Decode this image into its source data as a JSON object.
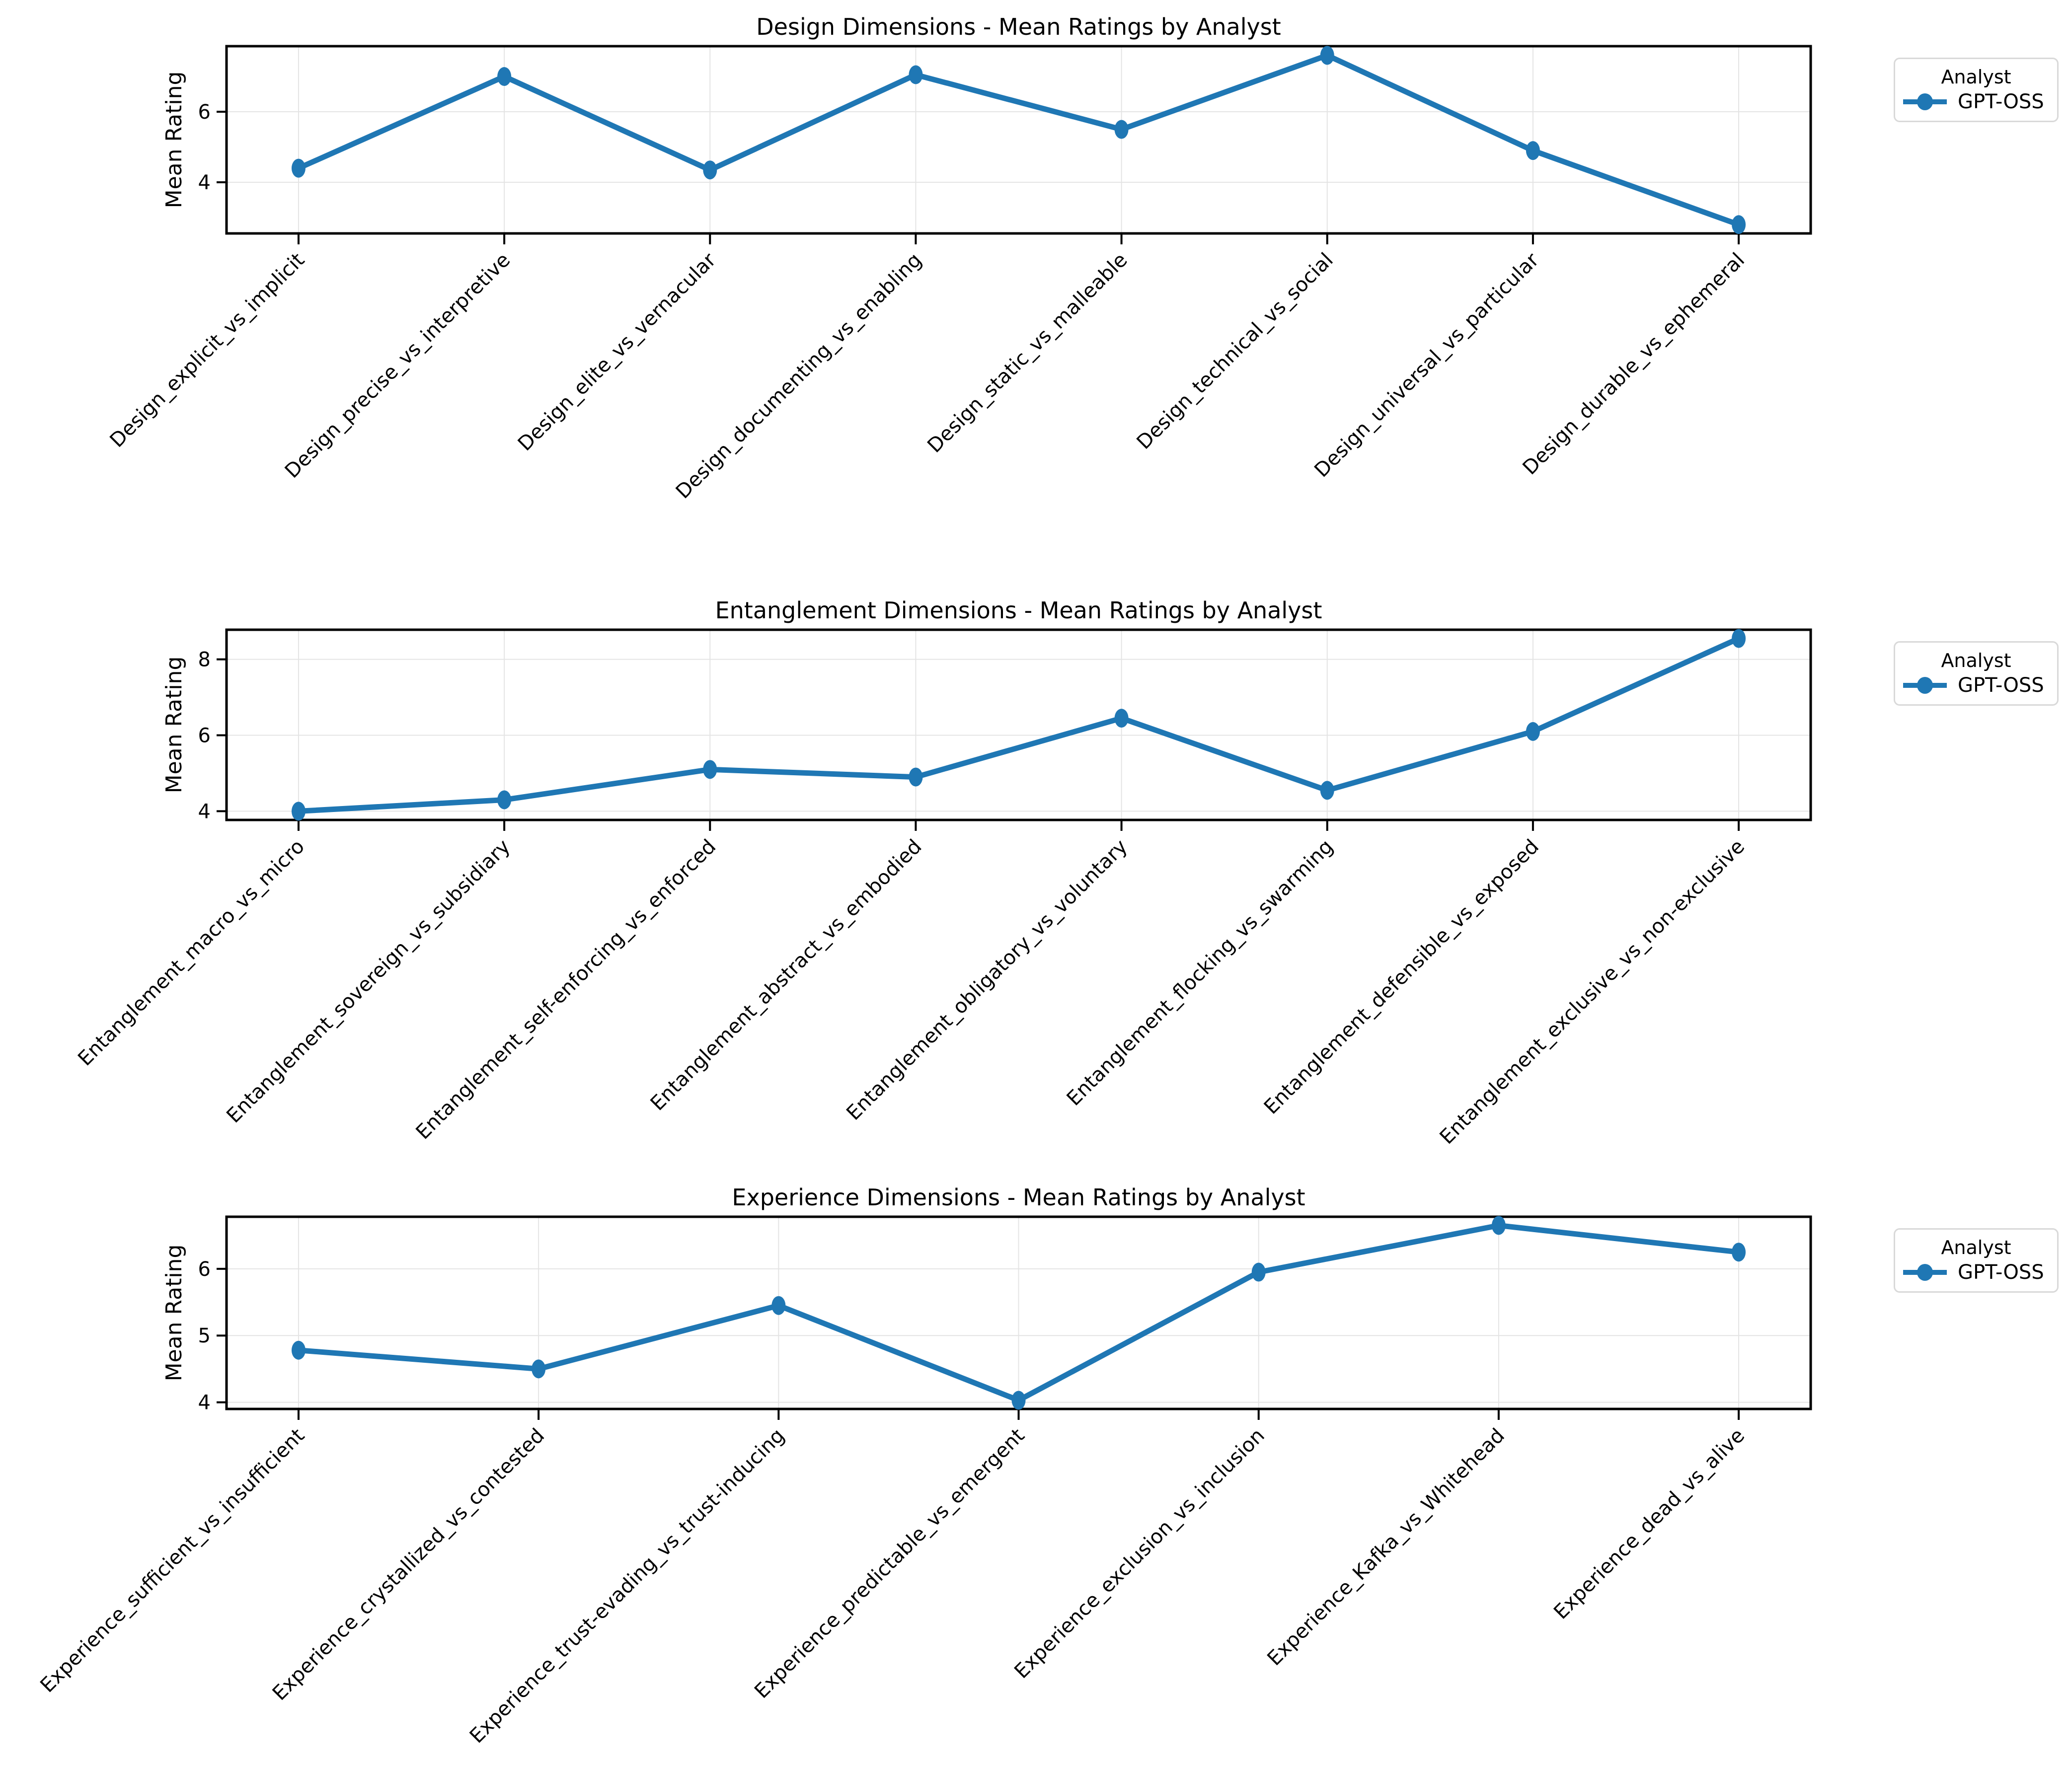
{
  "figure": {
    "background_color": "#ffffff",
    "line_color": "#1f77b4",
    "grid_color": "#e4e4e4",
    "ylabel": "Mean Rating",
    "legend_title": "Analyst",
    "series_name": "GPT-OSS"
  },
  "chart_data": [
    {
      "type": "line",
      "title": "Design Dimensions - Mean Ratings by Analyst",
      "xlabel": "",
      "ylabel": "Mean Rating",
      "legend_title": "Analyst",
      "legend_position": "right-top-outside",
      "grid": true,
      "categories": [
        "Design_explicit_vs_implicit",
        "Design_precise_vs_interpretive",
        "Design_elite_vs_vernacular",
        "Design_documenting_vs_enabling",
        "Design_static_vs_malleable",
        "Design_technical_vs_social",
        "Design_universal_vs_particular",
        "Design_durable_vs_ephemeral"
      ],
      "series": [
        {
          "name": "GPT-OSS",
          "color": "#1f77b4",
          "values": [
            4.4,
            7.0,
            4.35,
            7.05,
            5.5,
            7.6,
            4.9,
            2.8
          ]
        }
      ],
      "yticks": [
        4,
        6
      ],
      "ylim": [
        2.55,
        7.86
      ]
    },
    {
      "type": "line",
      "title": "Entanglement Dimensions - Mean Ratings by Analyst",
      "xlabel": "",
      "ylabel": "Mean Rating",
      "legend_title": "Analyst",
      "legend_position": "right-top-outside",
      "grid": true,
      "categories": [
        "Entanglement_macro_vs_micro",
        "Entanglement_sovereign_vs_subsidiary",
        "Entanglement_self-enforcing_vs_enforced",
        "Entanglement_abstract_vs_embodied",
        "Entanglement_obligatory_vs_voluntary",
        "Entanglement_flocking_vs_swarming",
        "Entanglement_defensible_vs_exposed",
        "Entanglement_exclusive_vs_non-exclusive"
      ],
      "series": [
        {
          "name": "GPT-OSS",
          "color": "#1f77b4",
          "values": [
            4.0,
            4.3,
            5.1,
            4.9,
            6.45,
            4.55,
            6.1,
            8.55
          ]
        }
      ],
      "yticks": [
        4,
        6,
        8
      ],
      "ylim": [
        3.77,
        8.78
      ]
    },
    {
      "type": "line",
      "title": "Experience Dimensions - Mean Ratings by Analyst",
      "xlabel": "",
      "ylabel": "Mean Rating",
      "legend_title": "Analyst",
      "legend_position": "right-top-outside",
      "grid": true,
      "categories": [
        "Experience_sufficient_vs_insufficient",
        "Experience_crystallized_vs_contested",
        "Experience_trust-evading_vs_trust-inducing",
        "Experience_predictable_vs_emergent",
        "Experience_exclusion_vs_inclusion",
        "Experience_Kafka_vs_Whitehead",
        "Experience_dead_vs_alive"
      ],
      "series": [
        {
          "name": "GPT-OSS",
          "color": "#1f77b4",
          "values": [
            4.78,
            4.5,
            5.45,
            4.03,
            5.95,
            6.65,
            6.25
          ]
        }
      ],
      "yticks": [
        4,
        5,
        6
      ],
      "ylim": [
        3.9,
        6.78
      ]
    }
  ]
}
